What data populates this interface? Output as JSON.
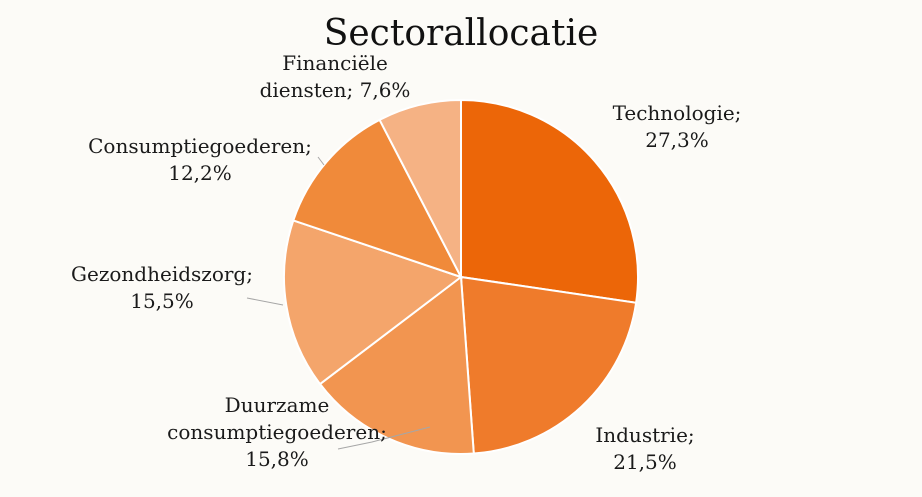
{
  "chart_data": {
    "type": "pie",
    "title": "Sectorallocatie",
    "colors": [
      "#ec6608",
      "#ef7b2b",
      "#f29550",
      "#f4a56b",
      "#f08a3a",
      "#f5b284"
    ],
    "slices": [
      {
        "name": "Technologie",
        "label_lines": [
          "Technologie;",
          "27,3%"
        ],
        "value": 27.3
      },
      {
        "name": "Industrie",
        "label_lines": [
          "Industrie;",
          "21,5%"
        ],
        "value": 21.5
      },
      {
        "name": "Duurzame consumptiegoederen",
        "label_lines": [
          "Duurzame",
          "consumptiegoederen;",
          "15,8%"
        ],
        "value": 15.8
      },
      {
        "name": "Gezondheidszorg",
        "label_lines": [
          "Gezondheidszorg;",
          "15,5%"
        ],
        "value": 15.5
      },
      {
        "name": "Consumptiegoederen",
        "label_lines": [
          "Consumptiegoederen;",
          "12,2%"
        ],
        "value": 12.2
      },
      {
        "name": "Financiële diensten",
        "label_lines": [
          "Financiële",
          "diensten; 7,6%"
        ],
        "value": 7.6
      }
    ]
  }
}
